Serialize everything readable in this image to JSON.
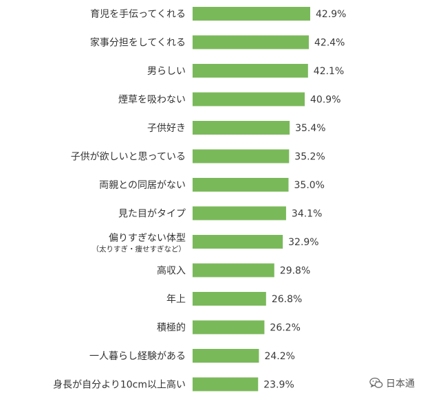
{
  "chart_data": {
    "type": "bar",
    "orientation": "horizontal",
    "categories": [
      "育児を手伝ってくれる",
      "家事分担をしてくれる",
      "男らしい",
      "煙草を吸わない",
      "子供好き",
      "子供が欲しいと思っている",
      "両親との同居がない",
      "見た目がタイプ",
      "偏りすぎない体型\n（太りすぎ・痩せすぎなど）",
      "高収入",
      "年上",
      "積極的",
      "一人暮らし経験がある",
      "身長が自分より10cm以上高い"
    ],
    "values": [
      42.9,
      42.4,
      42.1,
      40.9,
      35.4,
      35.2,
      35.0,
      34.1,
      32.9,
      29.8,
      26.8,
      26.2,
      24.2,
      23.9
    ],
    "value_labels": [
      "42.9%",
      "42.4%",
      "42.1%",
      "40.9%",
      "35.4%",
      "35.2%",
      "35.0%",
      "34.1%",
      "32.9%",
      "29.8%",
      "26.8%",
      "26.2%",
      "24.2%",
      "23.9%"
    ],
    "xlim": [
      0,
      42.9
    ],
    "bar_color": "#7ab95a",
    "grid": false
  },
  "watermark": {
    "text": "日本通",
    "icon": "wechat-bubble-icon"
  }
}
